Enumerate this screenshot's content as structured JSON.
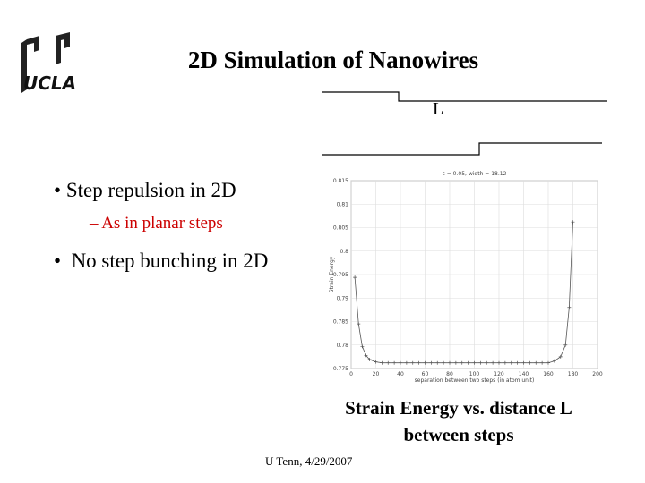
{
  "header": {
    "title": "2D Simulation of Nanowires",
    "logo": "UCLA"
  },
  "diagram": {
    "label": "L"
  },
  "bullets": [
    {
      "text": "Step repulsion in 2D",
      "sub": "As in planar steps"
    },
    {
      "text": "No step bunching in 2D"
    }
  ],
  "caption": "Strain Energy vs. distance L between steps",
  "footer": "U Tenn, 4/29/2007",
  "chart_data": {
    "type": "line",
    "title": "ε = 0.05, width = 18.12",
    "x_label": "separation between two steps (in atom unit)",
    "y_label": "Strain Energy",
    "x": [
      3,
      6,
      9,
      12,
      15,
      20,
      25,
      30,
      35,
      40,
      45,
      50,
      55,
      60,
      65,
      70,
      75,
      80,
      85,
      90,
      95,
      100,
      105,
      110,
      115,
      120,
      125,
      130,
      135,
      140,
      145,
      150,
      155,
      160,
      165,
      170,
      174,
      177,
      180
    ],
    "values": [
      0.7944,
      0.7845,
      0.7797,
      0.7778,
      0.7769,
      0.7764,
      0.7762,
      0.7762,
      0.7762,
      0.7762,
      0.7762,
      0.7762,
      0.7762,
      0.7762,
      0.7762,
      0.7762,
      0.7762,
      0.7762,
      0.7762,
      0.7762,
      0.7762,
      0.7762,
      0.7762,
      0.7762,
      0.7762,
      0.7762,
      0.7762,
      0.7762,
      0.7762,
      0.7762,
      0.7762,
      0.7762,
      0.7762,
      0.7762,
      0.7766,
      0.7775,
      0.78,
      0.788,
      0.8062
    ],
    "color": "#555555",
    "xlim": [
      0,
      200
    ],
    "xticks": [
      0,
      20,
      40,
      60,
      80,
      100,
      120,
      140,
      160,
      180,
      200
    ],
    "ylim": [
      0.775,
      0.815
    ],
    "yticks": [
      0.775,
      0.78,
      0.785,
      0.79,
      0.795,
      0.8,
      0.805,
      0.81,
      0.815
    ],
    "grid": true
  }
}
